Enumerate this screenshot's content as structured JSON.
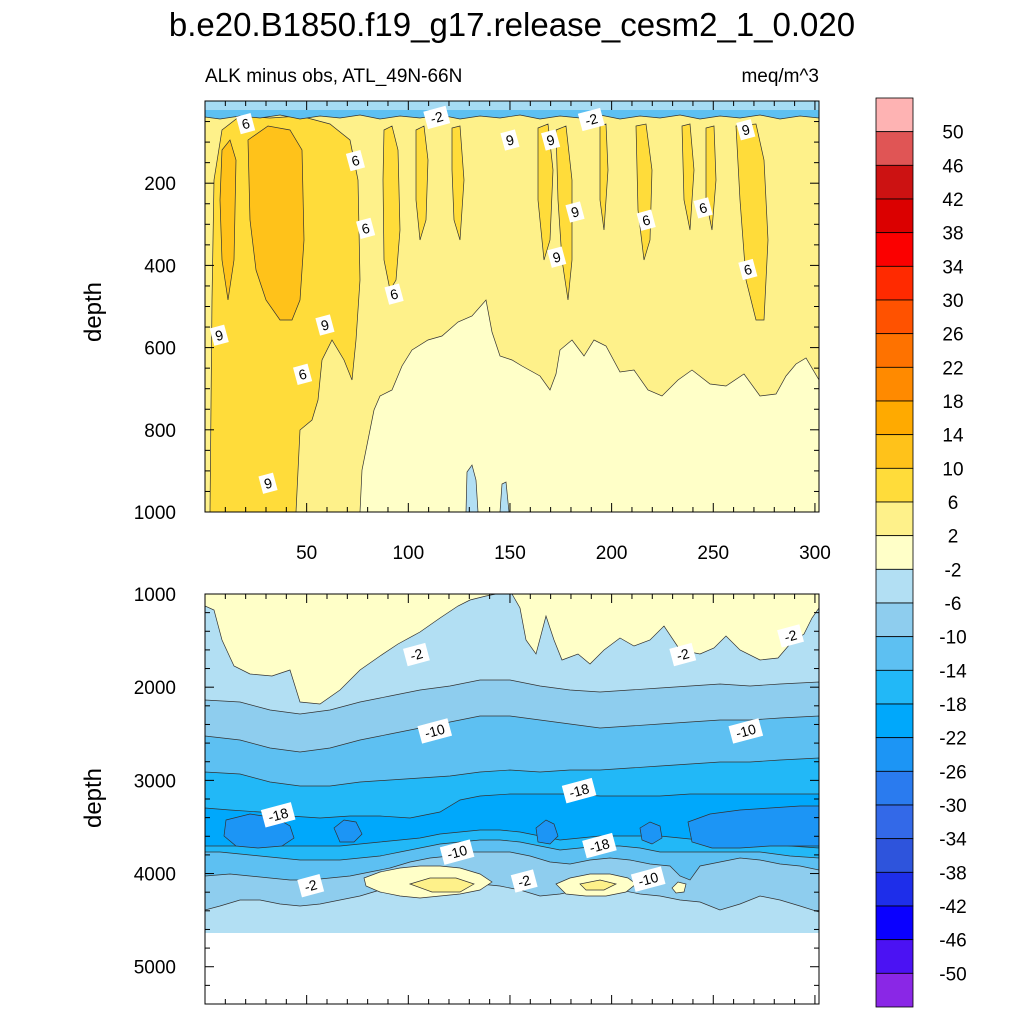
{
  "chart_data": {
    "type": "heatmap",
    "title": "b.e20.B1850.f19_g17.release_cesm2_1_0.020",
    "subtitle_left": "ALK minus obs, ATL_49N-66N",
    "subtitle_right": "meq/m^3",
    "ylabel": "depth",
    "panels": [
      {
        "name": "upper",
        "ylim": [
          1000,
          0
        ],
        "xlim": [
          0,
          302
        ],
        "xticks": [
          "50",
          "100",
          "150",
          "200",
          "250",
          "300"
        ],
        "yticks": [
          "200",
          "400",
          "600",
          "800",
          "1000"
        ],
        "contour_labels": [
          {
            "text": "6",
            "x": 20,
            "depth": 55
          },
          {
            "text": "-2",
            "x": 114,
            "depth": 40
          },
          {
            "text": "-2",
            "x": 190,
            "depth": 45
          },
          {
            "text": "6",
            "x": 74,
            "depth": 145
          },
          {
            "text": "9",
            "x": 150,
            "depth": 95
          },
          {
            "text": "9",
            "x": 170,
            "depth": 95
          },
          {
            "text": "9",
            "x": 266,
            "depth": 70
          },
          {
            "text": "6",
            "x": 79,
            "depth": 310
          },
          {
            "text": "9",
            "x": 182,
            "depth": 270
          },
          {
            "text": "6",
            "x": 217,
            "depth": 290
          },
          {
            "text": "6",
            "x": 245,
            "depth": 260
          },
          {
            "text": "9",
            "x": 173,
            "depth": 380
          },
          {
            "text": "6",
            "x": 267,
            "depth": 410
          },
          {
            "text": "6",
            "x": 93,
            "depth": 470
          },
          {
            "text": "9",
            "x": 7,
            "depth": 570
          },
          {
            "text": "9",
            "x": 59,
            "depth": 545
          },
          {
            "text": "6",
            "x": 48,
            "depth": 665
          },
          {
            "text": "9",
            "x": 31,
            "depth": 930
          }
        ]
      },
      {
        "name": "lower",
        "ylim": [
          5400,
          1000
        ],
        "xlim": [
          0,
          302
        ],
        "yticks": [
          "1000",
          "2000",
          "3000",
          "4000",
          "5000"
        ],
        "contour_labels": [
          {
            "text": "-2",
            "x": 104,
            "depth": 1650
          },
          {
            "text": "-2",
            "x": 235,
            "depth": 1650
          },
          {
            "text": "-2",
            "x": 288,
            "depth": 1450
          },
          {
            "text": "-10",
            "x": 113,
            "depth": 2470
          },
          {
            "text": "-10",
            "x": 266,
            "depth": 2470
          },
          {
            "text": "-18",
            "x": 36,
            "depth": 3370
          },
          {
            "text": "-18",
            "x": 184,
            "depth": 3110
          },
          {
            "text": "-18",
            "x": 194,
            "depth": 3700
          },
          {
            "text": "-10",
            "x": 124,
            "depth": 3770
          },
          {
            "text": "-2",
            "x": 52,
            "depth": 4130
          },
          {
            "text": "-2",
            "x": 157,
            "depth": 4080
          },
          {
            "text": "-10",
            "x": 218,
            "depth": 4060
          }
        ]
      }
    ],
    "colorbar": {
      "labels": [
        "50",
        "46",
        "42",
        "38",
        "34",
        "30",
        "26",
        "22",
        "18",
        "14",
        "10",
        "6",
        "2",
        "-2",
        "-6",
        "-10",
        "-14",
        "-18",
        "-22",
        "-26",
        "-30",
        "-34",
        "-38",
        "-42",
        "-46",
        "-50"
      ],
      "colors": [
        "#FEB3B3",
        "#E05555",
        "#CC1212",
        "#DB0000",
        "#FB0000",
        "#FF2A00",
        "#FF5200",
        "#FE7200",
        "#FF8A00",
        "#FFAA00",
        "#FFC21A",
        "#FFDC3A",
        "#FEF18A",
        "#FFFFC8",
        "#B2DFF3",
        "#8ECDEE",
        "#5DC0F2",
        "#22B8F7",
        "#00A8FB",
        "#1C95F5",
        "#2A7BEF",
        "#3369E8",
        "#2E54DC",
        "#1E2EEA",
        "#0A00FF",
        "#4B12F3",
        "#8A27E6"
      ]
    }
  }
}
